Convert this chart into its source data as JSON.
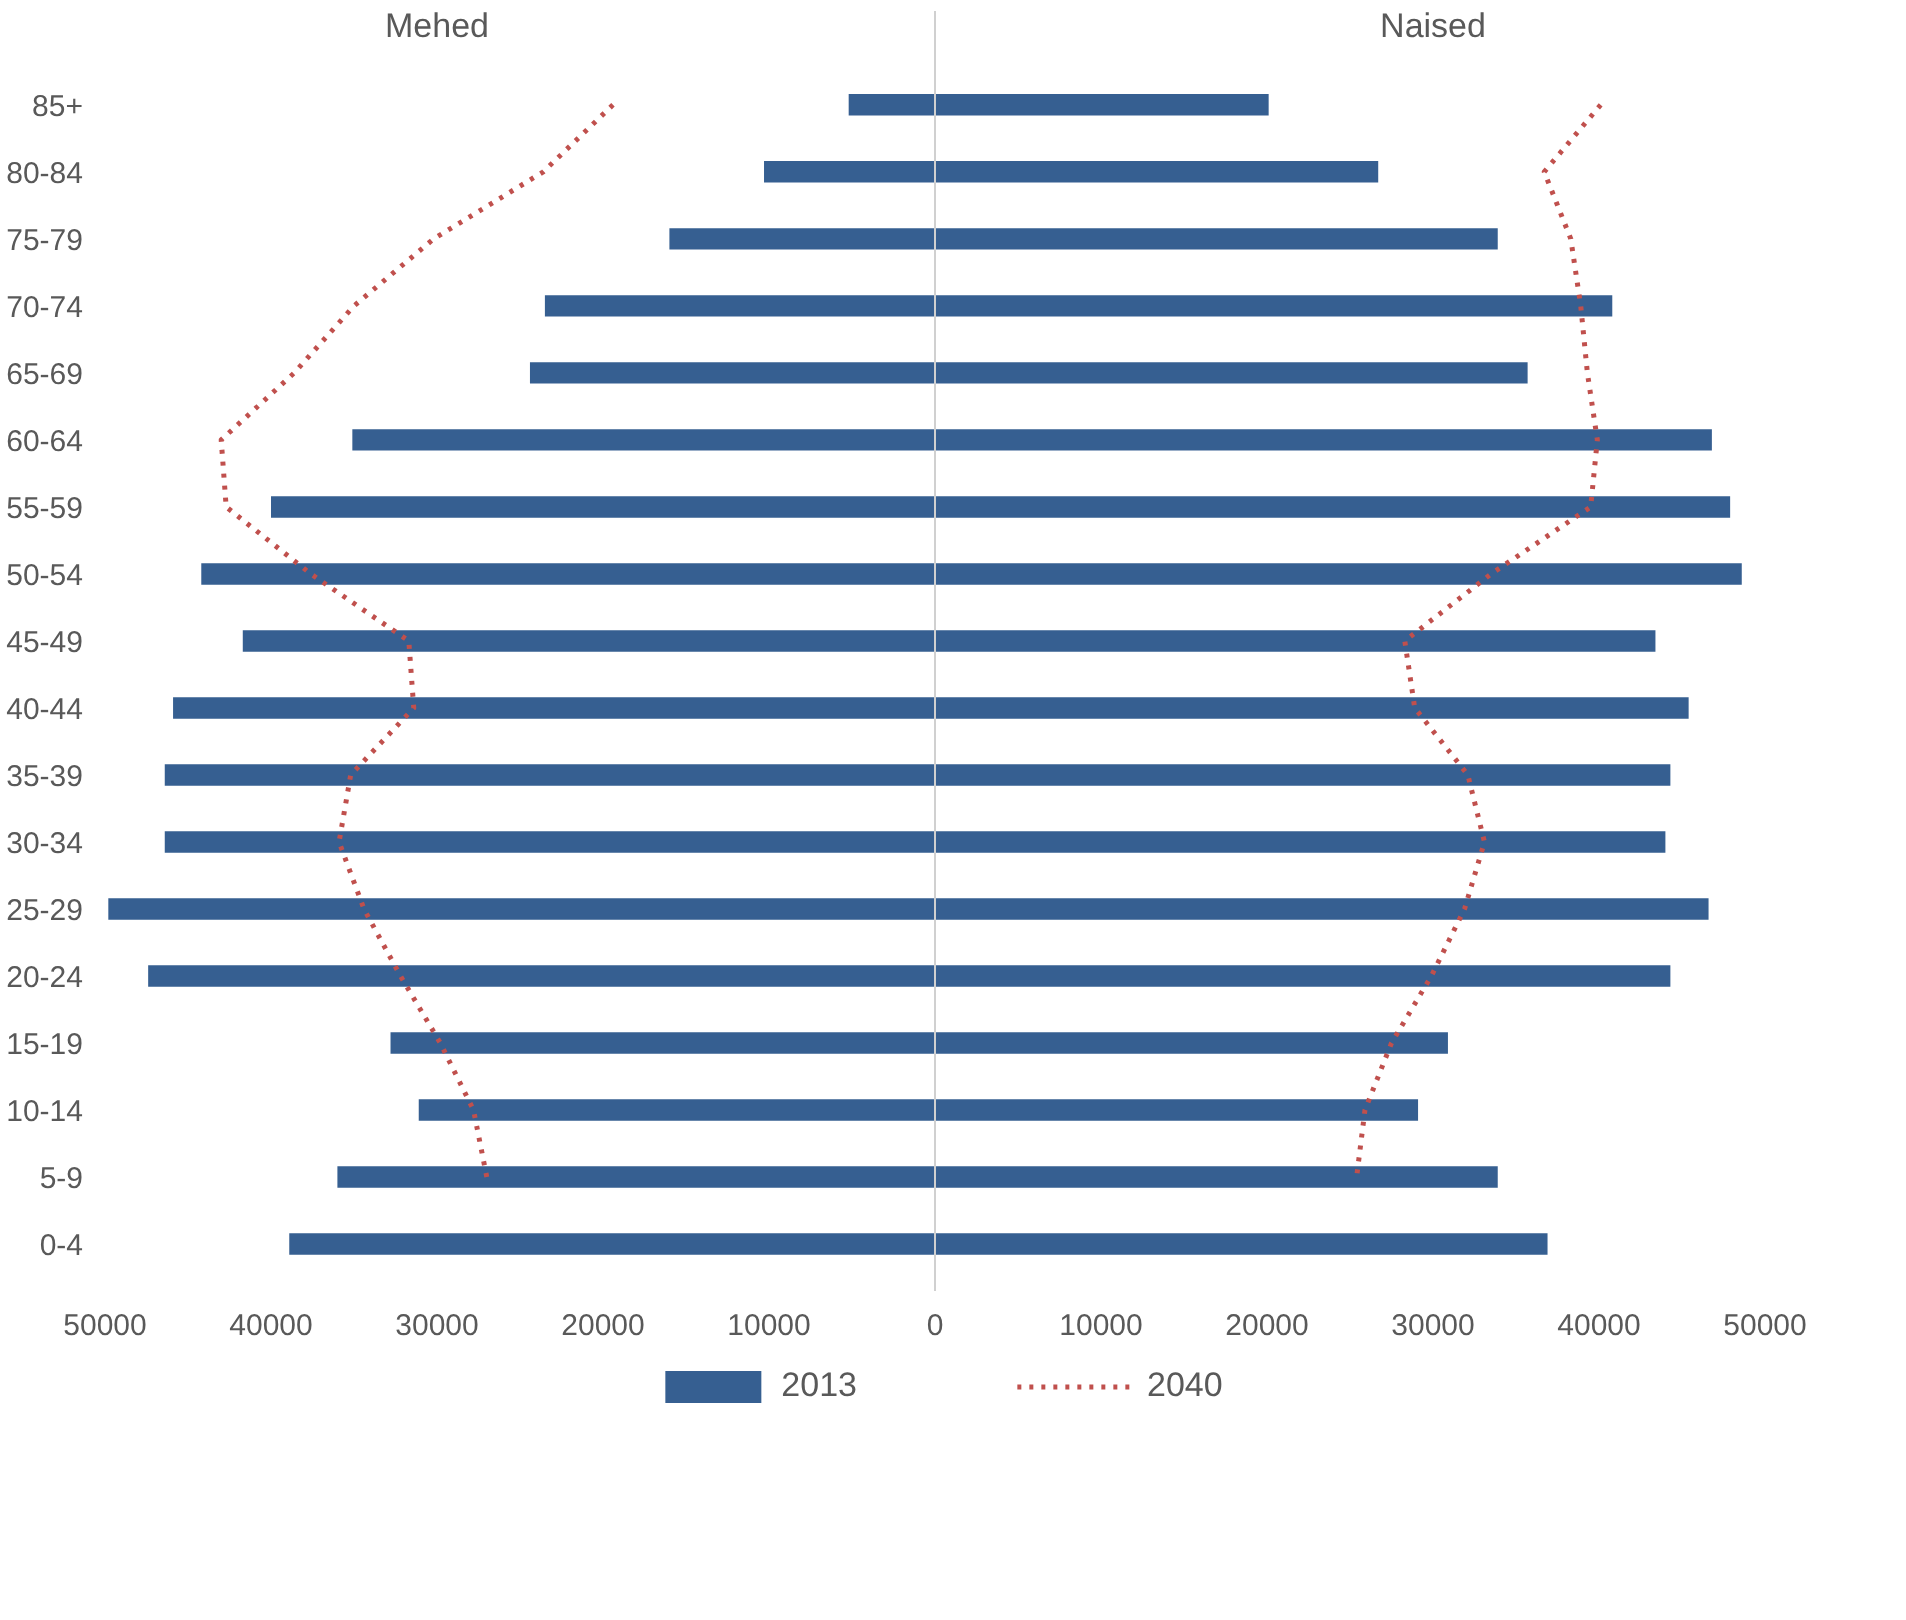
{
  "chart_data": {
    "type": "bar",
    "orientation": "horizontal",
    "categories": [
      "85+",
      "80-84",
      "75-79",
      "70-74",
      "65-69",
      "60-64",
      "55-59",
      "50-54",
      "45-49",
      "40-44",
      "35-39",
      "30-34",
      "25-29",
      "20-24",
      "15-19",
      "10-14",
      "5-9",
      "0-4"
    ],
    "series": [
      {
        "name": "2013",
        "color": "#365f91",
        "values": [
          -5200,
          -10300,
          -16000,
          -23500,
          -24400,
          -35100,
          -40000,
          -44200,
          -41700,
          -45900,
          -46400,
          -46400,
          -49800,
          -47400,
          -32800,
          -31100,
          -36000,
          -38900
        ]
      },
      {
        "color": "#365f91",
        "values": [
          20100,
          26700,
          33900,
          40800,
          35700,
          46800,
          47900,
          48600,
          43400,
          45400,
          44300,
          44000,
          46600,
          44300,
          30900,
          29100,
          33900,
          36900
        ]
      },
      {
        "name": "2040",
        "type": "line",
        "line_style": "dotted",
        "color": "#c0504d",
        "values": [
          -19400,
          -23600,
          -30200,
          -35000,
          -38600,
          -43000,
          -42700,
          -37600,
          -31700,
          -31400,
          -35200,
          -35900,
          -34400,
          -32200,
          -29800,
          -27800,
          -27000,
          null
        ]
      },
      {
        "type": "line",
        "line_style": "dotted",
        "color": "#c0504d",
        "values": [
          40100,
          36700,
          38300,
          38900,
          39300,
          39900,
          39500,
          33500,
          28300,
          28900,
          32100,
          33100,
          31900,
          29900,
          27500,
          25900,
          25400,
          null
        ]
      }
    ],
    "xlim": [
      -50000,
      50000
    ],
    "stacked": true,
    "ref_lines": [
      {
        "axis": "x",
        "value": 0,
        "color": "#d0d0d0"
      }
    ],
    "xticks": [
      {
        "value": -50000,
        "label": "50000"
      },
      {
        "value": -40000,
        "label": "40000"
      },
      {
        "value": -30000,
        "label": "30000"
      },
      {
        "value": -20000,
        "label": "20000"
      },
      {
        "value": -10000,
        "label": "10000"
      },
      0,
      10000,
      20000,
      30000,
      40000,
      50000
    ],
    "annotations": [
      "Mehed",
      "Naised"
    ],
    "grid": false,
    "legend": "bottom"
  }
}
